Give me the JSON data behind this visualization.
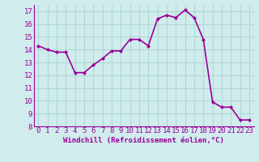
{
  "x": [
    0,
    1,
    2,
    3,
    4,
    5,
    6,
    7,
    8,
    9,
    10,
    11,
    12,
    13,
    14,
    15,
    16,
    17,
    18,
    19,
    20,
    21,
    22,
    23
  ],
  "y": [
    14.3,
    14.0,
    13.8,
    13.8,
    12.2,
    12.2,
    12.8,
    13.3,
    13.9,
    13.9,
    14.8,
    14.8,
    14.3,
    16.4,
    16.7,
    16.5,
    17.1,
    16.5,
    14.8,
    9.9,
    9.5,
    9.5,
    8.5,
    8.5
  ],
  "line_color": "#990099",
  "marker": "D",
  "marker_size": 2.0,
  "background_color": "#d0ecec",
  "grid_color": "#b0d8d8",
  "xlabel": "Windchill (Refroidissement éolien,°C)",
  "xlabel_color": "#990099",
  "tick_color": "#990099",
  "label_color": "#990099",
  "ylim": [
    8,
    17.5
  ],
  "xlim": [
    -0.5,
    23.5
  ],
  "yticks": [
    8,
    9,
    10,
    11,
    12,
    13,
    14,
    15,
    16,
    17
  ],
  "xticks": [
    0,
    1,
    2,
    3,
    4,
    5,
    6,
    7,
    8,
    9,
    10,
    11,
    12,
    13,
    14,
    15,
    16,
    17,
    18,
    19,
    20,
    21,
    22,
    23
  ],
  "linewidth": 1.2,
  "tick_fontsize": 6.5,
  "xlabel_fontsize": 6.5
}
